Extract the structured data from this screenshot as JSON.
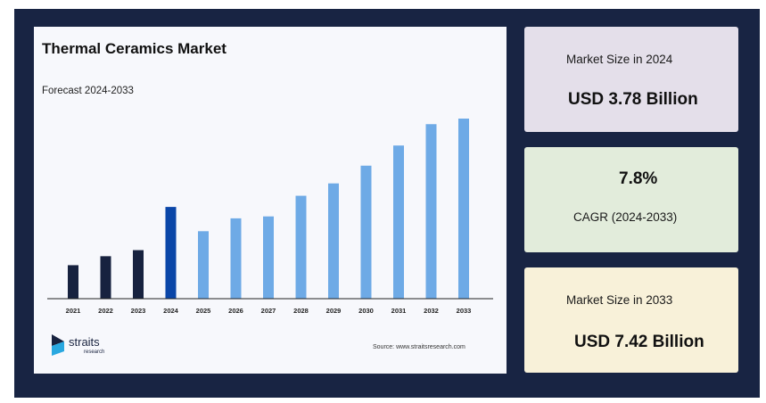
{
  "chart_data": {
    "type": "bar",
    "title": "Thermal Ceramics Market",
    "subtitle": "Forecast 2024-2033",
    "categories": [
      "2021",
      "2022",
      "2023",
      "2024",
      "2025",
      "2026",
      "2027",
      "2028",
      "2029",
      "2030",
      "2031",
      "2032",
      "2033"
    ],
    "values": [
      1.38,
      1.75,
      2.0,
      3.78,
      2.78,
      3.31,
      3.39,
      4.24,
      4.75,
      5.48,
      6.31,
      7.19,
      7.42
    ],
    "ylim": [
      0,
      7.42
    ],
    "bar_colors": [
      "#17223f",
      "#17223f",
      "#17223f",
      "#0a46a8",
      "#6eaae6",
      "#6eaae6",
      "#6eaae6",
      "#6eaae6",
      "#6eaae6",
      "#6eaae6",
      "#6eaae6",
      "#6eaae6",
      "#6eaae6"
    ],
    "grid": false,
    "legend": "none"
  },
  "source": "Source: www.straitsresearch.com",
  "logo": {
    "name": "straits",
    "sub": "research",
    "icon": "straits-logo-icon"
  },
  "cards": [
    {
      "label": "Market Size in 2024",
      "value": "USD 3.78 Billion"
    },
    {
      "label": "CAGR (2024-2033)",
      "value": "7.8%"
    },
    {
      "label": "Market Size in 2033",
      "value": "USD 7.42 Billion"
    }
  ]
}
